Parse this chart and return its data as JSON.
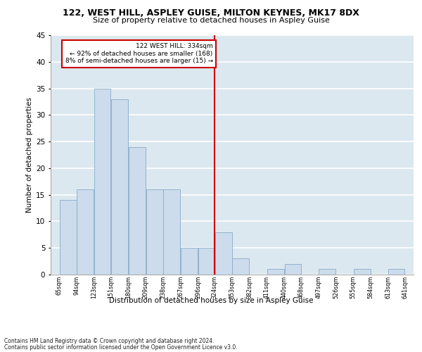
{
  "title1": "122, WEST HILL, ASPLEY GUISE, MILTON KEYNES, MK17 8DX",
  "title2": "Size of property relative to detached houses in Aspley Guise",
  "xlabel": "Distribution of detached houses by size in Aspley Guise",
  "ylabel": "Number of detached properties",
  "footer1": "Contains HM Land Registry data © Crown copyright and database right 2024.",
  "footer2": "Contains public sector information licensed under the Open Government Licence v3.0.",
  "annotation_line1": "122 WEST HILL: 334sqm",
  "annotation_line2": "← 92% of detached houses are smaller (168)",
  "annotation_line3": "8% of semi-detached houses are larger (15) →",
  "bin_edges": [
    65,
    94,
    123,
    151,
    180,
    209,
    238,
    267,
    296,
    324,
    353,
    382,
    411,
    440,
    468,
    497,
    526,
    555,
    584,
    613,
    641
  ],
  "bin_labels": [
    "65sqm",
    "94sqm",
    "123sqm",
    "151sqm",
    "180sqm",
    "209sqm",
    "238sqm",
    "267sqm",
    "296sqm",
    "324sqm",
    "353sqm",
    "382sqm",
    "411sqm",
    "440sqm",
    "468sqm",
    "497sqm",
    "526sqm",
    "555sqm",
    "584sqm",
    "613sqm",
    "641sqm"
  ],
  "counts": [
    14,
    16,
    35,
    33,
    24,
    16,
    16,
    5,
    5,
    8,
    3,
    0,
    1,
    2,
    0,
    1,
    0,
    1,
    0,
    1
  ],
  "bar_color": "#ccdcec",
  "bar_edgecolor": "#88aac8",
  "vline_color": "#cc0000",
  "vline_x_edge_index": 9,
  "annotation_box_edgecolor": "#cc0000",
  "bg_color": "#dce8f0",
  "ylim": [
    0,
    45
  ],
  "yticks": [
    0,
    5,
    10,
    15,
    20,
    25,
    30,
    35,
    40,
    45
  ]
}
